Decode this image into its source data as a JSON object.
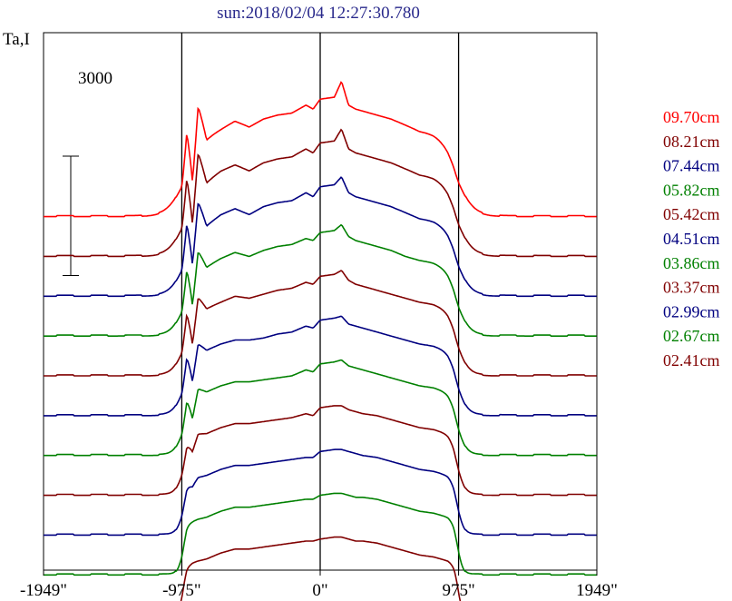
{
  "chart_data": {
    "type": "line",
    "title": "sun:2018/02/04 12:27:30.780",
    "title_color": "#2a2a8c",
    "ylabel": "Ta,I",
    "scale_bar_label": "3000",
    "x_ticks": [
      "-1949\"",
      "-975\"",
      "0\"",
      "975\"",
      "1949\""
    ],
    "x_tick_values": [
      -1949,
      -975,
      0,
      975,
      1949
    ],
    "xlim": [
      -1949,
      1949
    ],
    "vertical_lines": [
      -975,
      0,
      975
    ],
    "ylim": [
      -100,
      13400
    ],
    "scale_bar": [
      7300,
      10300
    ],
    "grid": false,
    "legend_placement": "right",
    "limb_sharpness": [
      14,
      18,
      22,
      26,
      30,
      34,
      38,
      42,
      46,
      50,
      55
    ],
    "series": [
      {
        "name": "09.70cm",
        "color": "#ff0000",
        "offset": 8780,
        "disk": 3600,
        "x": [
          -975,
          -940,
          -900,
          -860,
          -800,
          -700,
          -600,
          -500,
          -400,
          -300,
          -200,
          -100,
          -50,
          0,
          100,
          150,
          200,
          250,
          300,
          400,
          500,
          600,
          700,
          800,
          900,
          940,
          975
        ],
        "y": [
          1500,
          3200,
          1100,
          3100,
          2000,
          2200,
          2400,
          2250,
          2450,
          2550,
          2600,
          2800,
          2700,
          2950,
          3000,
          3400,
          2800,
          2700,
          2650,
          2550,
          2450,
          2300,
          2150,
          2100,
          2000,
          1900,
          1700
        ]
      },
      {
        "name": "08.21cm",
        "color": "#800000",
        "offset": 7780,
        "disk": 3500,
        "x": [
          -975,
          -940,
          -900,
          -860,
          -800,
          -700,
          -600,
          -500,
          -400,
          -300,
          -200,
          -100,
          -50,
          0,
          100,
          150,
          200,
          250,
          300,
          400,
          500,
          600,
          700,
          800,
          900,
          940,
          975
        ],
        "y": [
          1400,
          2900,
          1000,
          2850,
          1900,
          2150,
          2300,
          2150,
          2350,
          2450,
          2500,
          2700,
          2600,
          2850,
          2900,
          3200,
          2700,
          2600,
          2550,
          2450,
          2350,
          2200,
          2050,
          2000,
          1900,
          1800,
          1600
        ]
      },
      {
        "name": "07.44cm",
        "color": "#000080",
        "offset": 6780,
        "disk": 3400,
        "x": [
          -975,
          -940,
          -900,
          -860,
          -800,
          -700,
          -600,
          -500,
          -400,
          -300,
          -200,
          -100,
          -50,
          0,
          100,
          150,
          200,
          250,
          300,
          400,
          500,
          600,
          700,
          800,
          900,
          940,
          975
        ],
        "y": [
          1300,
          2650,
          950,
          2550,
          1800,
          2050,
          2200,
          2050,
          2250,
          2350,
          2400,
          2600,
          2500,
          2750,
          2800,
          3000,
          2600,
          2500,
          2450,
          2350,
          2250,
          2100,
          1950,
          1900,
          1800,
          1700,
          1500
        ]
      },
      {
        "name": "05.82cm",
        "color": "#008000",
        "offset": 5780,
        "disk": 3300,
        "x": [
          -975,
          -940,
          -900,
          -860,
          -800,
          -700,
          -600,
          -500,
          -400,
          -300,
          -200,
          -100,
          -50,
          0,
          100,
          150,
          200,
          250,
          300,
          400,
          500,
          600,
          700,
          800,
          900,
          940,
          975
        ],
        "y": [
          1200,
          2350,
          900,
          2250,
          1750,
          1950,
          2100,
          2000,
          2150,
          2250,
          2300,
          2450,
          2400,
          2600,
          2650,
          2800,
          2500,
          2400,
          2350,
          2250,
          2150,
          2000,
          1900,
          1850,
          1750,
          1650,
          1450
        ]
      },
      {
        "name": "05.42cm",
        "color": "#800000",
        "offset": 4780,
        "disk": 3200,
        "x": [
          -975,
          -940,
          -900,
          -860,
          -800,
          -700,
          -600,
          -500,
          -400,
          -300,
          -200,
          -100,
          -50,
          0,
          100,
          150,
          200,
          250,
          300,
          400,
          500,
          600,
          700,
          800,
          900,
          940,
          975
        ],
        "y": [
          1150,
          2150,
          900,
          2050,
          1700,
          1850,
          2000,
          1950,
          2050,
          2150,
          2200,
          2350,
          2300,
          2500,
          2550,
          2650,
          2400,
          2300,
          2250,
          2150,
          2050,
          1950,
          1850,
          1800,
          1700,
          1600,
          1400
        ]
      },
      {
        "name": "04.51cm",
        "color": "#000080",
        "offset": 3780,
        "disk": 3100,
        "x": [
          -975,
          -940,
          -900,
          -860,
          -800,
          -700,
          -600,
          -500,
          -400,
          -300,
          -200,
          -100,
          -50,
          0,
          100,
          150,
          200,
          250,
          300,
          400,
          500,
          600,
          700,
          800,
          900,
          940,
          975
        ],
        "y": [
          1100,
          1950,
          950,
          1850,
          1650,
          1800,
          1900,
          1900,
          1950,
          2050,
          2100,
          2250,
          2200,
          2400,
          2450,
          2500,
          2300,
          2250,
          2200,
          2100,
          2000,
          1900,
          1800,
          1750,
          1650,
          1550,
          1350
        ]
      },
      {
        "name": "03.86cm",
        "color": "#008000",
        "offset": 2780,
        "disk": 3000,
        "x": [
          -975,
          -940,
          -900,
          -860,
          -800,
          -700,
          -600,
          -500,
          -400,
          -300,
          -200,
          -100,
          -50,
          0,
          100,
          150,
          200,
          250,
          300,
          400,
          500,
          600,
          700,
          800,
          900,
          940,
          975
        ],
        "y": [
          1050,
          1750,
          1000,
          1700,
          1600,
          1750,
          1850,
          1850,
          1900,
          1950,
          2000,
          2150,
          2100,
          2300,
          2350,
          2400,
          2250,
          2200,
          2150,
          2050,
          1950,
          1850,
          1750,
          1700,
          1600,
          1500,
          1300
        ]
      },
      {
        "name": "03.37cm",
        "color": "#800000",
        "offset": 1780,
        "disk": 2900,
        "x": [
          -975,
          -940,
          -900,
          -860,
          -800,
          -700,
          -600,
          -500,
          -400,
          -300,
          -200,
          -100,
          -50,
          0,
          100,
          150,
          200,
          250,
          300,
          400,
          500,
          600,
          700,
          800,
          900,
          940,
          975
        ],
        "y": [
          1000,
          1500,
          1150,
          1550,
          1550,
          1700,
          1800,
          1800,
          1850,
          1900,
          1950,
          2050,
          2000,
          2200,
          2250,
          2250,
          2150,
          2100,
          2050,
          2000,
          1900,
          1800,
          1700,
          1650,
          1550,
          1450,
          1250
        ]
      },
      {
        "name": "02.99cm",
        "color": "#000080",
        "offset": 780,
        "disk": 2800,
        "x": [
          -975,
          -940,
          -900,
          -860,
          -800,
          -700,
          -600,
          -500,
          -400,
          -300,
          -200,
          -100,
          -50,
          0,
          100,
          150,
          200,
          250,
          300,
          400,
          500,
          600,
          700,
          800,
          900,
          940,
          975
        ],
        "y": [
          950,
          1350,
          1250,
          1450,
          1500,
          1650,
          1750,
          1750,
          1800,
          1850,
          1900,
          1950,
          1950,
          2100,
          2150,
          2150,
          2100,
          2050,
          2000,
          1950,
          1850,
          1750,
          1650,
          1600,
          1500,
          1400,
          1200
        ]
      },
      {
        "name": "02.67cm",
        "color": "#008000",
        "offset": -220,
        "disk": 2700,
        "x": [
          -975,
          -940,
          -900,
          -860,
          -800,
          -700,
          -600,
          -500,
          -400,
          -300,
          -200,
          -100,
          -50,
          0,
          100,
          150,
          200,
          250,
          300,
          400,
          500,
          600,
          700,
          800,
          900,
          940,
          975
        ],
        "y": [
          900,
          1300,
          1350,
          1400,
          1450,
          1600,
          1700,
          1700,
          1750,
          1800,
          1850,
          1900,
          1900,
          2000,
          2050,
          2050,
          2000,
          1950,
          1950,
          1900,
          1800,
          1700,
          1600,
          1550,
          1450,
          1350,
          1150
        ]
      },
      {
        "name": "02.41cm",
        "color": "#800000",
        "offset": -1220,
        "disk": 2600,
        "x": [
          -975,
          -940,
          -900,
          -860,
          -800,
          -700,
          -600,
          -500,
          -400,
          -300,
          -200,
          -100,
          -50,
          0,
          100,
          150,
          200,
          250,
          300,
          400,
          500,
          600,
          700,
          800,
          900,
          940,
          975
        ],
        "y": [
          850,
          1200,
          1300,
          1350,
          1400,
          1550,
          1650,
          1650,
          1700,
          1750,
          1800,
          1850,
          1850,
          1900,
          1950,
          1950,
          1900,
          1850,
          1850,
          1800,
          1700,
          1600,
          1500,
          1450,
          1350,
          1250,
          1100
        ]
      }
    ]
  }
}
